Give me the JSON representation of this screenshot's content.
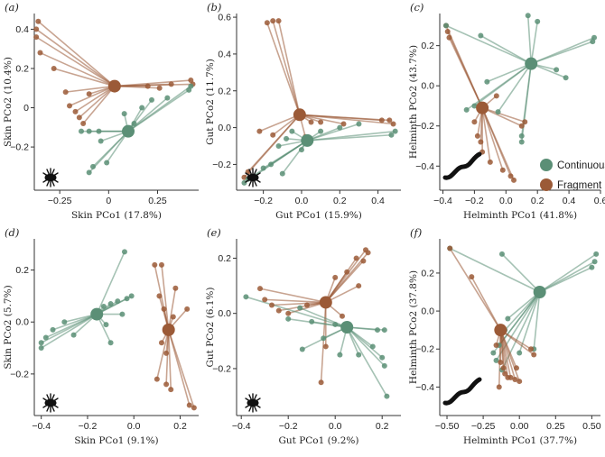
{
  "colors": {
    "continuous": "#5b8f76",
    "fragment": "#9b5a37"
  },
  "legend": {
    "items": [
      {
        "label": "Continuous",
        "group": "continuous"
      },
      {
        "label": "Fragment",
        "group": "fragment"
      }
    ]
  },
  "chart_data": [
    {
      "id": "a",
      "panel_label": "(a)",
      "type": "scatter",
      "xlabel": "Skin PCo1 (17.8%)",
      "ylabel": "Skin PCo2 (10.4%)",
      "xlim": [
        -0.38,
        0.46
      ],
      "ylim": [
        -0.42,
        0.48
      ],
      "xticks": [
        -0.25,
        0,
        0.25
      ],
      "xticklabels": [
        "−0.25",
        "0",
        "0.25"
      ],
      "yticks": [
        -0.2,
        0,
        0.2,
        0.4
      ],
      "yticklabels": [
        "−0.2",
        "0",
        "0.2",
        "0.4"
      ],
      "icon": "tick-icon",
      "series": [
        {
          "name": "Fragment",
          "group": "fragment",
          "centroid": [
            0.03,
            0.11
          ],
          "points": [
            [
              -0.36,
              0.44
            ],
            [
              -0.37,
              0.4
            ],
            [
              -0.37,
              0.36
            ],
            [
              -0.35,
              0.28
            ],
            [
              -0.28,
              0.2
            ],
            [
              -0.22,
              0.08
            ],
            [
              -0.2,
              0.01
            ],
            [
              -0.17,
              -0.02
            ],
            [
              -0.15,
              -0.05
            ],
            [
              -0.13,
              -0.08
            ],
            [
              -0.1,
              0.07
            ],
            [
              0.2,
              0.11
            ],
            [
              0.26,
              0.1
            ],
            [
              0.32,
              0.12
            ],
            [
              0.42,
              0.14
            ],
            [
              0.43,
              0.12
            ]
          ]
        },
        {
          "name": "Continuous",
          "group": "continuous",
          "centroid": [
            0.1,
            -0.12
          ],
          "points": [
            [
              -0.14,
              -0.12
            ],
            [
              -0.1,
              -0.12
            ],
            [
              -0.05,
              -0.12
            ],
            [
              -0.04,
              -0.17
            ],
            [
              -0.01,
              -0.28
            ],
            [
              -0.1,
              -0.33
            ],
            [
              -0.08,
              -0.3
            ],
            [
              0.08,
              -0.03
            ],
            [
              0.13,
              -0.08
            ],
            [
              0.17,
              0.0
            ],
            [
              0.22,
              0.04
            ],
            [
              0.3,
              0.05
            ],
            [
              0.41,
              0.09
            ],
            [
              0.42,
              0.11
            ]
          ]
        }
      ]
    },
    {
      "id": "b",
      "panel_label": "(b)",
      "type": "scatter",
      "xlabel": "Gut PCo1 (15.9%)",
      "ylabel": "Gut PCo2 (11.7%)",
      "xlim": [
        -0.34,
        0.52
      ],
      "ylim": [
        -0.34,
        0.62
      ],
      "xticks": [
        -0.2,
        0,
        0.2,
        0.4
      ],
      "xticklabels": [
        "−0.2",
        "0.0",
        "0.2",
        "0.4"
      ],
      "yticks": [
        -0.2,
        0,
        0.2,
        0.4,
        0.6
      ],
      "yticklabels": [
        "−0.2",
        "0.0",
        "0.2",
        "0.4",
        "0.6"
      ],
      "icon": "tick-icon",
      "series": [
        {
          "name": "Fragment",
          "group": "fragment",
          "centroid": [
            -0.01,
            0.07
          ],
          "points": [
            [
              -0.18,
              0.57
            ],
            [
              -0.15,
              0.58
            ],
            [
              -0.12,
              0.58
            ],
            [
              -0.22,
              -0.02
            ],
            [
              -0.15,
              -0.04
            ],
            [
              -0.3,
              -0.27
            ],
            [
              -0.28,
              -0.24
            ],
            [
              0.05,
              0.03
            ],
            [
              0.1,
              0.03
            ],
            [
              0.22,
              0.02
            ],
            [
              0.42,
              0.04
            ],
            [
              0.46,
              0.04
            ],
            [
              0.48,
              0.02
            ],
            [
              0.02,
              -0.05
            ]
          ]
        },
        {
          "name": "Continuous",
          "group": "continuous",
          "centroid": [
            0.03,
            -0.07
          ],
          "points": [
            [
              -0.3,
              -0.3
            ],
            [
              -0.28,
              -0.28
            ],
            [
              -0.2,
              -0.22
            ],
            [
              -0.16,
              -0.2
            ],
            [
              -0.12,
              -0.1
            ],
            [
              -0.08,
              -0.06
            ],
            [
              -0.05,
              -0.02
            ],
            [
              0.1,
              -0.02
            ],
            [
              0.2,
              0.0
            ],
            [
              0.3,
              0.02
            ],
            [
              0.47,
              -0.04
            ],
            [
              0.49,
              -0.02
            ],
            [
              0.0,
              -0.12
            ],
            [
              -0.1,
              -0.25
            ]
          ]
        }
      ]
    },
    {
      "id": "c",
      "panel_label": "(c)",
      "type": "scatter",
      "xlabel": "Helminth PCo1 (41.8%)",
      "ylabel": "Helminth PCo2 (43.7%)",
      "xlim": [
        -0.42,
        0.6
      ],
      "ylim": [
        -0.52,
        0.36
      ],
      "xticks": [
        -0.4,
        -0.2,
        0,
        0.2,
        0.4,
        0.6
      ],
      "xticklabels": [
        "−0.4",
        "−0.2",
        "0.0",
        "0.2",
        "0.4",
        "0.6"
      ],
      "yticks": [
        -0.4,
        -0.2,
        0,
        0.2
      ],
      "yticklabels": [
        "−0.4",
        "−0.2",
        "0.0",
        "0.2"
      ],
      "icon": "worm-icon",
      "legend": true,
      "series": [
        {
          "name": "Fragment",
          "group": "fragment",
          "centroid": [
            -0.15,
            -0.11
          ],
          "points": [
            [
              -0.38,
              0.3
            ],
            [
              -0.37,
              0.27
            ],
            [
              -0.36,
              0.24
            ],
            [
              -0.2,
              -0.18
            ],
            [
              -0.18,
              -0.25
            ],
            [
              -0.16,
              -0.28
            ],
            [
              -0.15,
              -0.33
            ],
            [
              -0.1,
              -0.38
            ],
            [
              -0.02,
              -0.42
            ],
            [
              0.03,
              -0.45
            ],
            [
              0.05,
              -0.47
            ],
            [
              -0.06,
              -0.05
            ],
            [
              0.1,
              -0.2
            ],
            [
              0.12,
              -0.18
            ]
          ]
        },
        {
          "name": "Continuous",
          "group": "continuous",
          "centroid": [
            0.16,
            0.11
          ],
          "points": [
            [
              -0.38,
              0.3
            ],
            [
              -0.16,
              0.25
            ],
            [
              0.14,
              0.35
            ],
            [
              0.2,
              0.32
            ],
            [
              0.55,
              0.22
            ],
            [
              0.56,
              0.24
            ],
            [
              0.32,
              0.08
            ],
            [
              0.38,
              0.04
            ],
            [
              -0.12,
              0.02
            ],
            [
              -0.2,
              -0.1
            ],
            [
              -0.25,
              -0.12
            ],
            [
              -0.05,
              -0.13
            ],
            [
              0.1,
              -0.28
            ],
            [
              0.1,
              -0.25
            ]
          ]
        }
      ]
    },
    {
      "id": "d",
      "panel_label": "(d)",
      "type": "scatter",
      "xlabel": "Skin PCo1 (9.1%)",
      "ylabel": "Skin PCo2 (5.7%)",
      "xlim": [
        -0.43,
        0.28
      ],
      "ylim": [
        -0.36,
        0.32
      ],
      "xticks": [
        -0.4,
        -0.2,
        0,
        0.2
      ],
      "xticklabels": [
        "−0.4",
        "−0.2",
        "0.0",
        "0.2"
      ],
      "yticks": [
        -0.2,
        0,
        0.2
      ],
      "yticklabels": [
        "−0.2",
        "0.0",
        "0.2"
      ],
      "icon": "tick-icon",
      "series": [
        {
          "name": "Continuous",
          "group": "continuous",
          "centroid": [
            -0.16,
            0.03
          ],
          "points": [
            [
              -0.04,
              0.27
            ],
            [
              -0.01,
              0.1
            ],
            [
              -0.03,
              0.09
            ],
            [
              -0.07,
              0.08
            ],
            [
              -0.1,
              0.07
            ],
            [
              -0.13,
              0.06
            ],
            [
              -0.05,
              0.03
            ],
            [
              -0.12,
              -0.01
            ],
            [
              -0.3,
              0.0
            ],
            [
              -0.35,
              -0.03
            ],
            [
              -0.38,
              -0.06
            ],
            [
              -0.4,
              -0.08
            ],
            [
              -0.4,
              -0.1
            ],
            [
              -0.26,
              -0.05
            ],
            [
              -0.1,
              -0.08
            ]
          ]
        },
        {
          "name": "Fragment",
          "group": "fragment",
          "centroid": [
            0.15,
            -0.03
          ],
          "points": [
            [
              0.09,
              0.22
            ],
            [
              0.12,
              0.22
            ],
            [
              0.11,
              0.1
            ],
            [
              0.18,
              0.13
            ],
            [
              0.13,
              0.05
            ],
            [
              0.17,
              0.02
            ],
            [
              0.23,
              0.05
            ],
            [
              0.12,
              -0.08
            ],
            [
              0.14,
              -0.12
            ],
            [
              0.1,
              -0.22
            ],
            [
              0.14,
              -0.24
            ],
            [
              0.16,
              -0.26
            ],
            [
              0.24,
              -0.32
            ],
            [
              0.26,
              -0.33
            ]
          ]
        }
      ]
    },
    {
      "id": "e",
      "panel_label": "(e)",
      "type": "scatter",
      "xlabel": "Gut PCo1 (9.2%)",
      "ylabel": "Gut PCo2 (6.1%)",
      "xlim": [
        -0.42,
        0.28
      ],
      "ylim": [
        -0.37,
        0.27
      ],
      "xticks": [
        -0.4,
        -0.2,
        0,
        0.2
      ],
      "xticklabels": [
        "−0.4",
        "−0.2",
        "0.0",
        "0.2"
      ],
      "yticks": [
        -0.2,
        0,
        0.2
      ],
      "yticklabels": [
        "−0.2",
        "0.0",
        "0.2"
      ],
      "icon": "tick-icon",
      "series": [
        {
          "name": "Fragment",
          "group": "fragment",
          "centroid": [
            -0.04,
            0.04
          ],
          "points": [
            [
              0.13,
              0.23
            ],
            [
              0.14,
              0.22
            ],
            [
              0.12,
              0.19
            ],
            [
              0.09,
              0.2
            ],
            [
              0.05,
              0.15
            ],
            [
              0.0,
              0.13
            ],
            [
              0.1,
              0.1
            ],
            [
              -0.32,
              0.09
            ],
            [
              -0.3,
              0.05
            ],
            [
              -0.27,
              0.03
            ],
            [
              -0.24,
              0.01
            ],
            [
              -0.2,
              0.0
            ],
            [
              -0.12,
              0.03
            ],
            [
              0.03,
              -0.01
            ],
            [
              -0.04,
              -0.12
            ],
            [
              -0.06,
              -0.25
            ]
          ]
        },
        {
          "name": "Continuous",
          "group": "continuous",
          "centroid": [
            0.05,
            -0.05
          ],
          "points": [
            [
              -0.38,
              0.06
            ],
            [
              -0.15,
              0.02
            ],
            [
              -0.2,
              -0.02
            ],
            [
              -0.1,
              -0.03
            ],
            [
              0.0,
              -0.04
            ],
            [
              0.18,
              -0.06
            ],
            [
              0.21,
              -0.06
            ],
            [
              0.16,
              -0.12
            ],
            [
              0.2,
              -0.16
            ],
            [
              0.21,
              -0.19
            ],
            [
              0.1,
              -0.15
            ],
            [
              0.22,
              -0.3
            ],
            [
              -0.05,
              -0.09
            ],
            [
              0.02,
              -0.15
            ],
            [
              -0.14,
              -0.13
            ]
          ]
        }
      ]
    },
    {
      "id": "f",
      "panel_label": "(f)",
      "type": "scatter",
      "xlabel": "Helminth PCo1 (37.7%)",
      "ylabel": "Helminth PCo2 (37.8%)",
      "xlim": [
        -0.55,
        0.56
      ],
      "ylim": [
        -0.55,
        0.38
      ],
      "xticks": [
        -0.5,
        -0.25,
        0,
        0.25,
        0.5
      ],
      "xticklabels": [
        "−0.50",
        "−0.25",
        "0.00",
        "0.25",
        "0.50"
      ],
      "yticks": [
        -0.4,
        -0.2,
        0,
        0.2
      ],
      "yticklabels": [
        "−0.4",
        "−0.2",
        "0.0",
        "0.2"
      ],
      "icon": "worm-icon",
      "series": [
        {
          "name": "Continuous",
          "group": "continuous",
          "centroid": [
            0.14,
            0.1
          ],
          "points": [
            [
              -0.48,
              0.33
            ],
            [
              -0.12,
              0.3
            ],
            [
              0.53,
              0.3
            ],
            [
              0.52,
              0.26
            ],
            [
              0.5,
              0.23
            ],
            [
              -0.08,
              -0.04
            ],
            [
              -0.1,
              -0.1
            ],
            [
              -0.14,
              -0.18
            ],
            [
              -0.16,
              -0.26
            ],
            [
              0.0,
              -0.22
            ],
            [
              -0.12,
              -0.31
            ],
            [
              0.1,
              -0.2
            ],
            [
              -0.18,
              -0.22
            ]
          ]
        },
        {
          "name": "Fragment",
          "group": "fragment",
          "centroid": [
            -0.13,
            -0.1
          ],
          "points": [
            [
              -0.48,
              0.33
            ],
            [
              -0.33,
              0.18
            ],
            [
              -0.16,
              -0.18
            ],
            [
              -0.13,
              -0.27
            ],
            [
              -0.11,
              -0.3
            ],
            [
              -0.1,
              -0.33
            ],
            [
              -0.08,
              -0.35
            ],
            [
              -0.06,
              -0.35
            ],
            [
              -0.03,
              -0.36
            ],
            [
              0.0,
              -0.37
            ],
            [
              -0.14,
              -0.4
            ],
            [
              0.1,
              -0.23
            ],
            [
              0.08,
              -0.2
            ],
            [
              -0.02,
              -0.3
            ]
          ]
        }
      ]
    }
  ]
}
